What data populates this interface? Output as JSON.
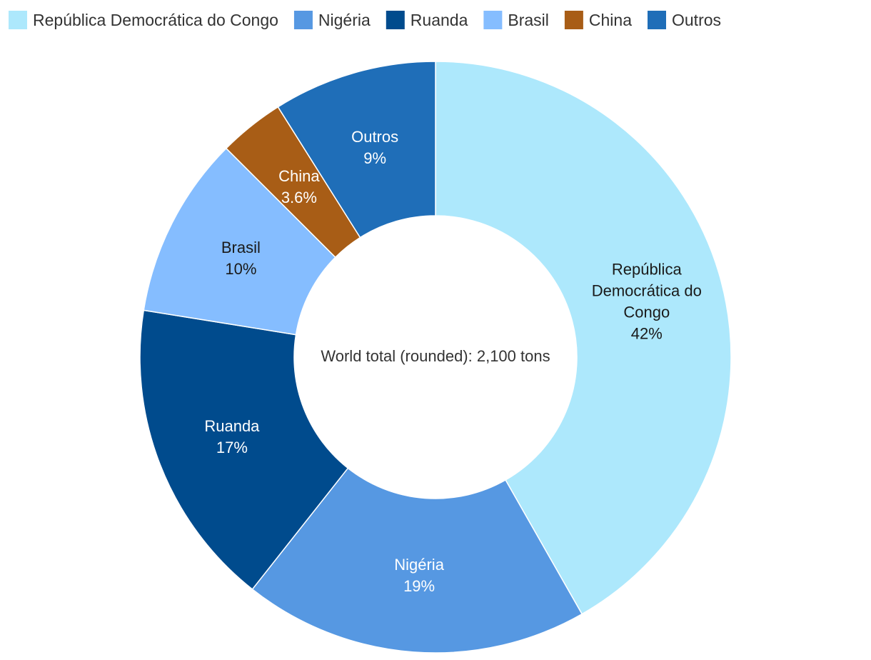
{
  "chart_data": {
    "type": "pie",
    "donut": true,
    "center_label": "World total (rounded): 2,100 tons",
    "legend_position": "top-left",
    "slices": [
      {
        "name": "República Democrática do Congo",
        "label_lines": [
          "República",
          "Democrática do",
          "Congo"
        ],
        "value": 42,
        "value_label": "42%",
        "color": "#ade8fc",
        "text_color": "#1a1a1a"
      },
      {
        "name": "Nigéria",
        "label_lines": [
          "Nigéria"
        ],
        "value": 19,
        "value_label": "19%",
        "color": "#5698e2",
        "text_color": "#ffffff"
      },
      {
        "name": "Ruanda",
        "label_lines": [
          "Ruanda"
        ],
        "value": 17,
        "value_label": "17%",
        "color": "#004b8d",
        "text_color": "#ffffff"
      },
      {
        "name": "Brasil",
        "label_lines": [
          "Brasil"
        ],
        "value": 10,
        "value_label": "10%",
        "color": "#85bdff",
        "text_color": "#1a1a1a"
      },
      {
        "name": "China",
        "label_lines": [
          "China"
        ],
        "value": 3.6,
        "value_label": "3.6%",
        "color": "#a85d16",
        "text_color": "#ffffff"
      },
      {
        "name": "Outros",
        "label_lines": [
          "Outros"
        ],
        "value": 9,
        "value_label": "9%",
        "color": "#1f6eb8",
        "text_color": "#ffffff"
      }
    ]
  }
}
